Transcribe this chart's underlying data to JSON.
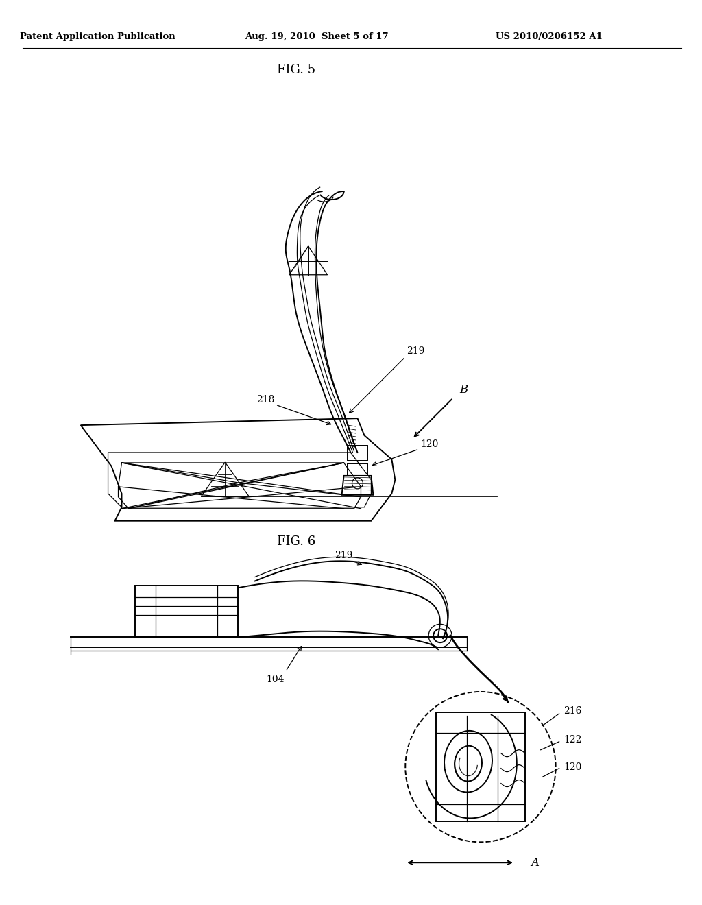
{
  "background_color": "#ffffff",
  "text_color": "#000000",
  "line_color": "#000000",
  "header_left": "Patent Application Publication",
  "header_mid": "Aug. 19, 2010  Sheet 5 of 17",
  "header_right": "US 2010/0206152 A1",
  "fig5_label": "FIG. 5",
  "fig6_label": "FIG. 6"
}
